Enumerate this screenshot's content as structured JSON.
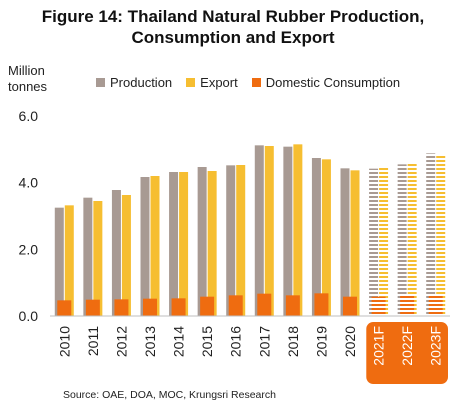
{
  "title_line1": "Figure 14: Thailand Natural Rubber Production,",
  "title_line2": "Consumption and Export",
  "unit_line1": "Million",
  "unit_line2": "tonnes",
  "source": "Source: OAE, DOA, MOC, Krungsri Research",
  "colors": {
    "production": "#A89A93",
    "export": "#F6BE31",
    "domestic": "#EF6C10",
    "forecast_label_bg": "#EF6C10",
    "forecast_label_text": "#ffffff"
  },
  "chart_data": {
    "type": "bar",
    "categories": [
      "2010",
      "2011",
      "2012",
      "2013",
      "2014",
      "2015",
      "2016",
      "2017",
      "2018",
      "2019",
      "2020",
      "2021F",
      "2022F",
      "2023F"
    ],
    "forecast_categories": [
      "2021F",
      "2022F",
      "2023F"
    ],
    "series": [
      {
        "name": "Production",
        "values": [
          3.25,
          3.55,
          3.78,
          4.17,
          4.32,
          4.47,
          4.52,
          5.12,
          5.08,
          4.74,
          4.43,
          4.42,
          4.55,
          4.88
        ]
      },
      {
        "name": "Export",
        "values": [
          3.32,
          3.45,
          3.63,
          4.2,
          4.32,
          4.35,
          4.53,
          5.1,
          5.15,
          4.7,
          4.37,
          4.5,
          4.62,
          4.82
        ]
      },
      {
        "name": "Domestic Consumption",
        "values": [
          0.47,
          0.49,
          0.5,
          0.52,
          0.53,
          0.58,
          0.62,
          0.67,
          0.62,
          0.68,
          0.58,
          0.58,
          0.62,
          0.66
        ]
      }
    ],
    "ylim": [
      0,
      6.0
    ],
    "yticks": [
      "0.0",
      "2.0",
      "4.0",
      "6.0"
    ],
    "ytick_values": [
      0,
      2,
      4,
      6
    ],
    "grid": false,
    "legend_position": "top"
  }
}
